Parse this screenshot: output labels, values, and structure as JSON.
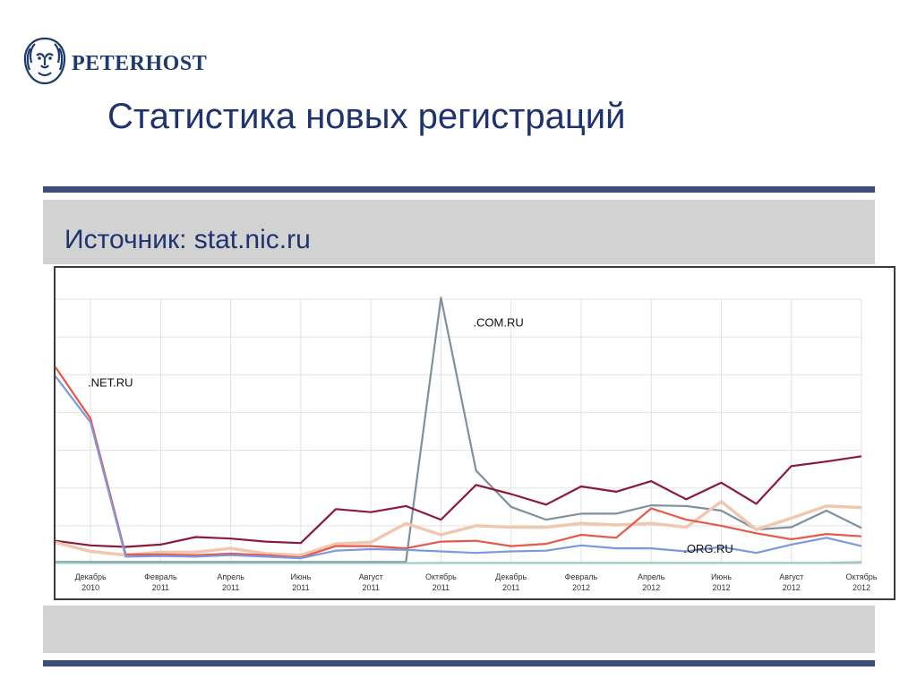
{
  "brand": {
    "name": "PETERHOST",
    "logo_icon": "lion-head-icon",
    "color": "#1d3a6b"
  },
  "slide": {
    "title": "Статистика новых регистраций",
    "source": "Источник: stat.nic.ru"
  },
  "chart_data": {
    "type": "line",
    "title": "",
    "xlabel": "",
    "ylabel": "",
    "ylim": [
      0,
      3500
    ],
    "yticks": [
      0,
      500,
      1000,
      1500,
      2000,
      2500,
      3000,
      3500
    ],
    "grid": true,
    "x_tick_labels": [
      [
        "Декабрь",
        "2010"
      ],
      [
        "Февраль",
        "2011"
      ],
      [
        "Апрель",
        "2011"
      ],
      [
        "Июнь",
        "2011"
      ],
      [
        "Август",
        "2011"
      ],
      [
        "Октябрь",
        "2011"
      ],
      [
        "Декабрь",
        "2011"
      ],
      [
        "Февраль",
        "2012"
      ],
      [
        "Апрель",
        "2012"
      ],
      [
        "Июнь",
        "2012"
      ],
      [
        "Август",
        "2012"
      ],
      [
        "Октябрь",
        "2012"
      ]
    ],
    "x": [
      "2010-11",
      "2010-12",
      "2011-01",
      "2011-02",
      "2011-03",
      "2011-04",
      "2011-05",
      "2011-06",
      "2011-07",
      "2011-08",
      "2011-09",
      "2011-10",
      "2011-11",
      "2011-12",
      "2012-01",
      "2012-02",
      "2012-03",
      "2012-04",
      "2012-05",
      "2012-06",
      "2012-07",
      "2012-08",
      "2012-09",
      "2012-10"
    ],
    "annotations": [
      {
        "text": ".COM.RU",
        "x": "2011-10",
        "y": 3200
      },
      {
        "text": ".NET.RU",
        "x": "2010-11",
        "y": 2400
      },
      {
        "text": ".ORG.RU",
        "x": "2012-04",
        "y": 200
      }
    ],
    "series": [
      {
        "color": "#7f91a0",
        "width": 2.2,
        "values": [
          20,
          20,
          20,
          20,
          20,
          20,
          20,
          20,
          20,
          20,
          20,
          3520,
          1230,
          750,
          580,
          660,
          660,
          770,
          760,
          700,
          450,
          480,
          700,
          470
        ]
      },
      {
        "color": "#8b1a3a",
        "width": 2.2,
        "values": [
          300,
          240,
          220,
          250,
          350,
          330,
          290,
          270,
          720,
          680,
          760,
          580,
          1040,
          920,
          780,
          1020,
          950,
          1090,
          850,
          1070,
          790,
          1290,
          1350,
          1420
        ]
      },
      {
        "color": "#f0c8b0",
        "width": 3.5,
        "values": [
          280,
          160,
          110,
          150,
          150,
          200,
          130,
          110,
          260,
          280,
          530,
          380,
          500,
          480,
          480,
          530,
          510,
          530,
          480,
          820,
          450,
          600,
          760,
          740
        ]
      },
      {
        "color": "#e8584a",
        "width": 2.2,
        "values": [
          2600,
          1920,
          120,
          120,
          110,
          130,
          110,
          80,
          230,
          230,
          200,
          290,
          300,
          230,
          260,
          380,
          340,
          730,
          580,
          500,
          400,
          320,
          390,
          360
        ]
      },
      {
        "color": "#7a99de",
        "width": 2.2,
        "values": [
          2480,
          1870,
          90,
          100,
          90,
          110,
          90,
          70,
          170,
          190,
          180,
          160,
          140,
          160,
          170,
          240,
          200,
          200,
          160,
          220,
          140,
          250,
          340,
          230
        ]
      },
      {
        "color": "#8fd0bb",
        "width": 2.0,
        "values": [
          10,
          5,
          5,
          5,
          5,
          5,
          5,
          5,
          5,
          5,
          5,
          10,
          10,
          10,
          10,
          10,
          10,
          10,
          10,
          10,
          10,
          10,
          10,
          20
        ]
      }
    ]
  }
}
